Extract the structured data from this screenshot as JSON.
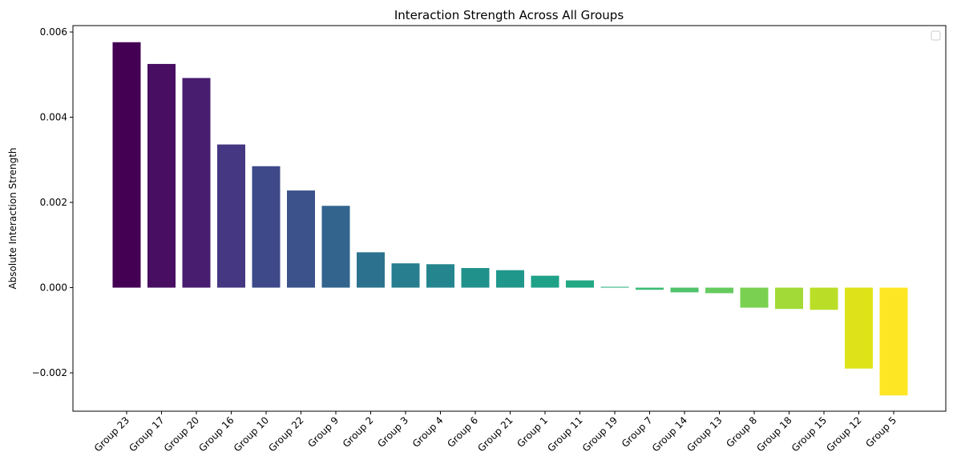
{
  "chart_data": {
    "type": "bar",
    "title": "Interaction Strength Across All Groups",
    "xlabel": "",
    "ylabel": "Absolute Interaction Strength",
    "categories": [
      "Group 23",
      "Group 17",
      "Group 20",
      "Group 16",
      "Group 10",
      "Group 22",
      "Group 9",
      "Group 2",
      "Group 3",
      "Group 4",
      "Group 6",
      "Group 21",
      "Group 1",
      "Group 11",
      "Group 19",
      "Group 7",
      "Group 14",
      "Group 13",
      "Group 8",
      "Group 18",
      "Group 15",
      "Group 12",
      "Group 5"
    ],
    "values": [
      0.00576,
      0.00525,
      0.00492,
      0.00336,
      0.00285,
      0.00228,
      0.00192,
      0.00083,
      0.00057,
      0.00055,
      0.00046,
      0.00041,
      0.00028,
      0.00017,
      2e-05,
      -5e-05,
      -0.00011,
      -0.00013,
      -0.00047,
      -0.0005,
      -0.00052,
      -0.0019,
      -0.00253
    ],
    "colors": [
      "#440154",
      "#470e61",
      "#481d6f",
      "#453781",
      "#3e4989",
      "#3b528b",
      "#32648e",
      "#2c728e",
      "#287d8e",
      "#25858e",
      "#21918c",
      "#1f988b",
      "#1fa188",
      "#22a884",
      "#2cb17e",
      "#3bbb75",
      "#4ec36b",
      "#65cb5e",
      "#7ad151",
      "#a2da37",
      "#bade28",
      "#dde318",
      "#fde725"
    ],
    "yticks": [
      -0.002,
      0,
      0.002,
      0.004,
      0.006
    ],
    "ytick_labels": [
      "−0.002",
      "0.000",
      "0.002",
      "0.004",
      "0.006"
    ],
    "ylim": [
      -0.0029,
      0.00615
    ],
    "grid": false,
    "legend": "top-right (empty)"
  }
}
